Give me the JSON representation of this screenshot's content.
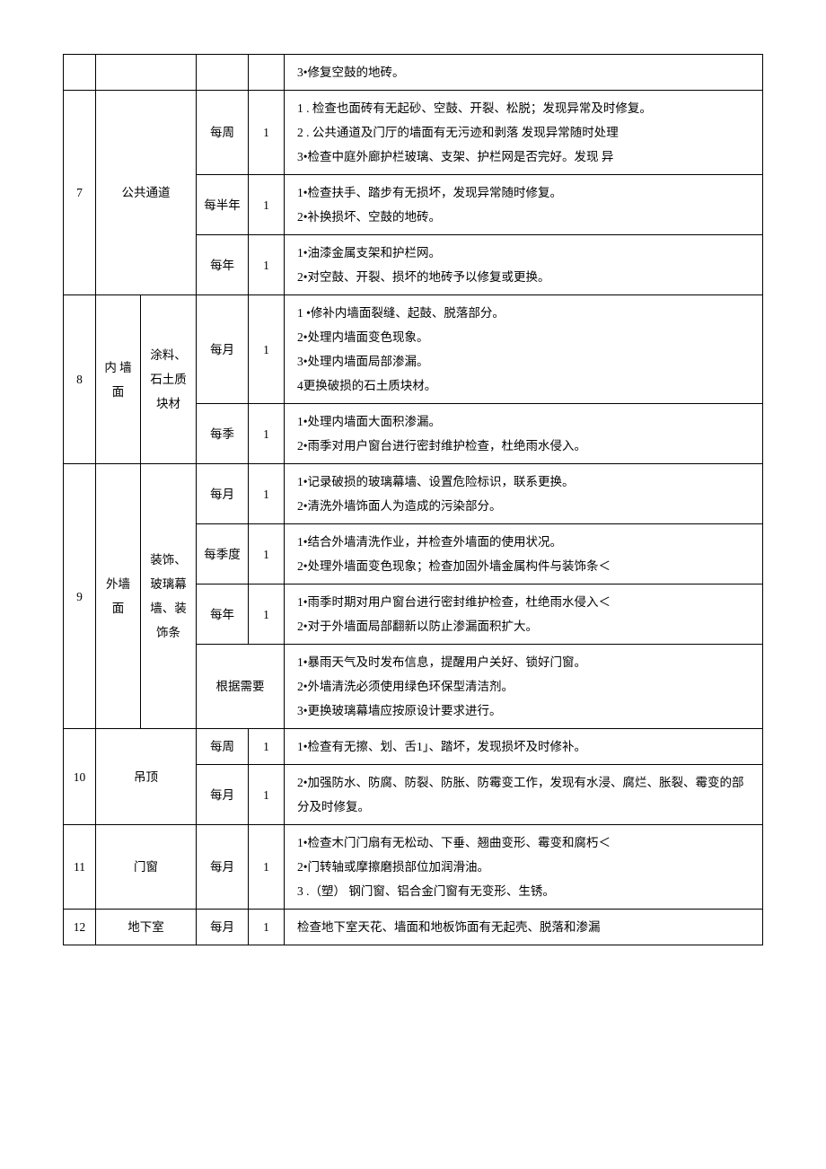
{
  "rows": {
    "r0_desc": "3•修复空鼓的地砖。",
    "r7": {
      "idx": "7",
      "cat": "公共通道",
      "a_freq": "每周",
      "a_num": "1",
      "a_desc": "1 . 检查也面砖有无起砂、空鼓、开裂、松脱；发现异常及时修复。\n2 . 公共通道及门厅的墙面有无污迹和剥落 发现异常随时处理\n3•检查中庭外廊护栏玻璃、支架、护栏网是否完好。发现  异",
      "b_freq": "每半年",
      "b_num": "1",
      "b_desc": "1•检查扶手、踏步有无损坏，发现异常随时修复。\n2•补换损坏、空鼓的地砖。",
      "c_freq": "每年",
      "c_num": "1",
      "c_desc": "1•油漆金属支架和护栏网。\n2•对空鼓、开裂、损坏的地砖予以修复或更换。"
    },
    "r8": {
      "idx": "8",
      "cat1": "内  墙面",
      "cat2": "涂料、石土质块材",
      "a_freq": "每月",
      "a_num": "1",
      "a_desc": "1 •修补内墙面裂缝、起鼓、脱落部分。\n2•处理内墙面变色现象。\n3•处理内墙面局部渗漏。\n4更换破损的石土质块材。",
      "b_freq": "每季",
      "b_num": "1",
      "b_desc": "1•处理内墙面大面积渗漏。\n2•雨季对用户窗台进行密封维护检查，杜绝雨水侵入。"
    },
    "r9": {
      "idx": "9",
      "cat1": "外墙面",
      "cat2": "装饰、玻璃幕墙、装饰条",
      "a_freq": "每月",
      "a_num": "1",
      "a_desc": "1•记录破损的玻璃幕墙、设置危险标识，联系更换。\n2•清洗外墙饰面人为造成的污染部分。",
      "b_freq": "每季度",
      "b_num": "1",
      "b_desc": "1•结合外墙清洗作业，并检查外墙面的使用状况。\n2•处理外墙面变色现象；检查加固外墙金属构件与装饰条＜",
      "c_freq": "每年",
      "c_num": "1",
      "c_desc": "1•雨季时期对用户窗台进行密封维护检查，杜绝雨水侵入＜\n2•对于外墙面局部翻新以防止渗漏面积扩大。",
      "d_freq": "根据需要",
      "d_desc": "1•暴雨天气及时发布信息，提醒用户关好、锁好门窗。\n2•外墙清洗必须使用绿色环保型清洁剂。\n3•更换玻璃幕墙应按原设计要求进行。"
    },
    "r10": {
      "idx": "10",
      "cat": "吊顶",
      "a_freq": "每周",
      "a_num": "1",
      "a_desc": "1•检查有无擦、划、舌1」、踏坏，发现损坏及时修补。",
      "b_freq": "每月",
      "b_num": "1",
      "b_desc": "2•加强防水、防腐、防裂、防胀、防霉变工作，发现有水浸、腐烂、胀裂、霉变的部分及时修复。"
    },
    "r11": {
      "idx": "11",
      "cat": "门窗",
      "freq": "每月",
      "num": "1",
      "desc": "1•检查木门门扇有无松动、下垂、翘曲变形、霉变和腐朽＜\n2•门转轴或摩擦磨损部位加润滑油。\n3 .（塑） 钢门窗、铝合金门窗有无变形、生锈。"
    },
    "r12": {
      "idx": "12",
      "cat": "地下室",
      "freq": "每月",
      "num": "1",
      "desc": "检查地下室天花、墙面和地板饰面有无起壳、脱落和渗漏"
    }
  }
}
